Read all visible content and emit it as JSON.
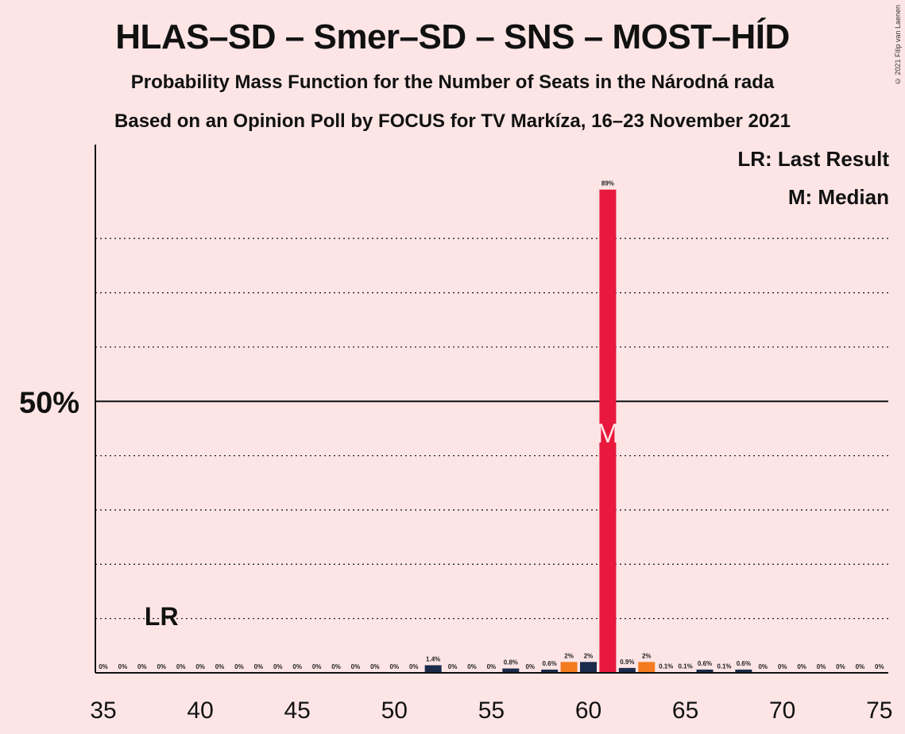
{
  "title": "HLAS–SD – Smer–SD – SNS – MOST–HÍD",
  "subtitle1": "Probability Mass Function for the Number of Seats in the Národná rada",
  "subtitle2": "Based on an Opinion Poll by FOCUS for TV Markíza, 16–23 November 2021",
  "copyright": "© 2021 Filip van Laenen",
  "legend": {
    "lr": "LR: Last Result",
    "m": "M: Median"
  },
  "colors": {
    "background": "#FDE5E6",
    "median": "#E8193C",
    "dark": "#1B2B4B",
    "orange": "#F47B20"
  },
  "chart_data": {
    "type": "bar",
    "x": [
      35,
      36,
      37,
      38,
      39,
      40,
      41,
      42,
      43,
      44,
      45,
      46,
      47,
      48,
      49,
      50,
      51,
      52,
      53,
      54,
      55,
      56,
      57,
      58,
      59,
      60,
      61,
      62,
      63,
      64,
      65,
      66,
      67,
      68,
      69,
      70,
      71,
      72,
      73,
      74,
      75
    ],
    "values": [
      0,
      0,
      0,
      0,
      0,
      0,
      0,
      0,
      0,
      0,
      0,
      0,
      0,
      0,
      0,
      0,
      0,
      1.4,
      0,
      0,
      0,
      0.8,
      0,
      0.6,
      2,
      2,
      89,
      0.9,
      2,
      0.1,
      0.1,
      0.6,
      0.1,
      0.6,
      0,
      0,
      0,
      0,
      0,
      0,
      0
    ],
    "labels": [
      "0%",
      "0%",
      "0%",
      "0%",
      "0%",
      "0%",
      "0%",
      "0%",
      "0%",
      "0%",
      "0%",
      "0%",
      "0%",
      "0%",
      "0%",
      "0%",
      "0%",
      "1.4%",
      "0%",
      "0%",
      "0%",
      "0.8%",
      "0%",
      "0.6%",
      "2%",
      "2%",
      "89%",
      "0.9%",
      "2%",
      "0.1%",
      "0.1%",
      "0.6%",
      "0.1%",
      "0.6%",
      "0%",
      "0%",
      "0%",
      "0%",
      "0%",
      "0%",
      "0%"
    ],
    "bar_colors": [
      "dark",
      "dark",
      "dark",
      "dark",
      "dark",
      "dark",
      "dark",
      "dark",
      "dark",
      "dark",
      "dark",
      "dark",
      "dark",
      "dark",
      "dark",
      "dark",
      "dark",
      "dark",
      "dark",
      "dark",
      "dark",
      "dark",
      "dark",
      "dark",
      "orange",
      "dark",
      "median",
      "dark",
      "orange",
      "dark",
      "dark",
      "dark",
      "dark",
      "dark",
      "dark",
      "dark",
      "dark",
      "dark",
      "dark",
      "dark",
      "dark"
    ],
    "xticks": [
      35,
      40,
      45,
      50,
      55,
      60,
      65,
      70,
      75
    ],
    "xlim": [
      35,
      75
    ],
    "ylim": [
      0,
      100
    ],
    "y_label_value": 50,
    "y_label_text": "50%",
    "gridlines": [
      10,
      20,
      30,
      40,
      60,
      70,
      80
    ],
    "last_result": {
      "x": 38,
      "label": "LR"
    },
    "median": {
      "x": 61,
      "label": "M"
    }
  }
}
